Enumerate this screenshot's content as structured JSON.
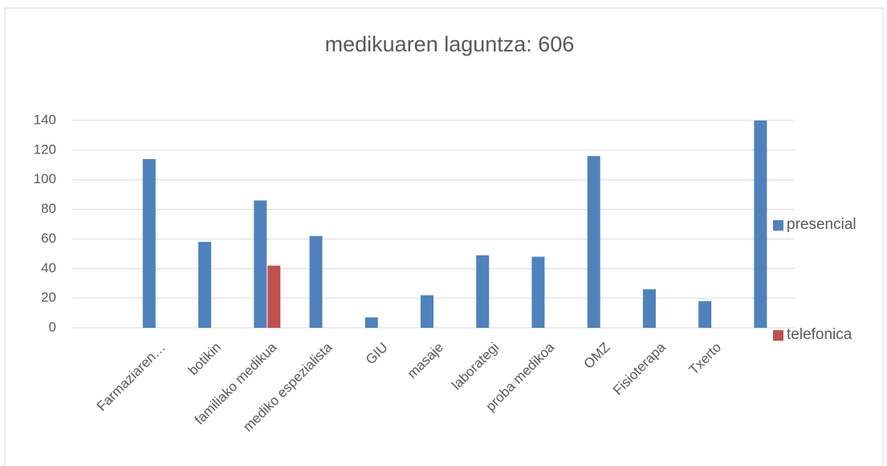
{
  "chart_data": {
    "type": "bar",
    "title": "medikuaren laguntza: 606",
    "categories": [
      null,
      "Farmaziaren…",
      "botikin",
      "familiako medikua",
      "mediko espezialista",
      "GIU",
      "masaje",
      "laborategi",
      "proba medikoa",
      "OMZ",
      "Fisioterapa",
      "Txerto",
      null
    ],
    "series": [
      {
        "name": "presencial",
        "color": "#4f81bd",
        "values": [
          null,
          114,
          58,
          86,
          62,
          7,
          22,
          49,
          48,
          116,
          26,
          18,
          140
        ]
      },
      {
        "name": "telefonica",
        "color": "#c0504d",
        "values": [
          null,
          null,
          null,
          42,
          null,
          null,
          null,
          null,
          null,
          null,
          null,
          null,
          null
        ]
      }
    ],
    "ylim": [
      0,
      140
    ],
    "yticks": [
      0,
      20,
      40,
      60,
      80,
      100,
      120,
      140
    ],
    "grid": true,
    "legend": "right"
  }
}
